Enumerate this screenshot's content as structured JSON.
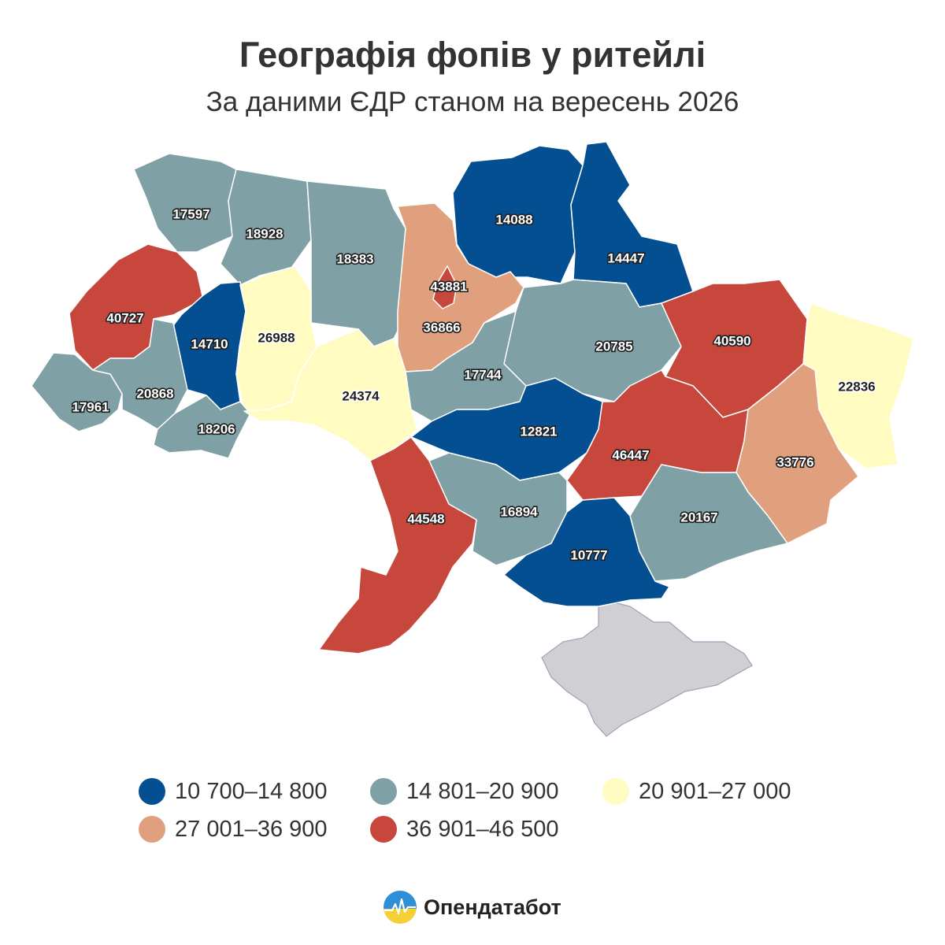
{
  "title": "Географія фопів у ритейлі",
  "subtitle": "За даними ЄДР станом на вересень 2026",
  "legend": [
    {
      "label": "10 700–14 800",
      "color": "#034f92"
    },
    {
      "label": "14 801–20 900",
      "color": "#7fa0a4"
    },
    {
      "label": "20 901–27 000",
      "color": "#fffbc1"
    },
    {
      "label": "27 001–36 900",
      "color": "#e1a07d"
    },
    {
      "label": "36 901–46 500",
      "color": "#c7473c"
    }
  ],
  "regions": [
    {
      "value": "17597",
      "color": "#7fa0a4"
    },
    {
      "value": "18928",
      "color": "#7fa0a4"
    },
    {
      "value": "18383",
      "color": "#7fa0a4"
    },
    {
      "value": "14088",
      "color": "#034f92"
    },
    {
      "value": "14447",
      "color": "#034f92"
    },
    {
      "value": "40727",
      "color": "#c7473c"
    },
    {
      "value": "14710",
      "color": "#034f92"
    },
    {
      "value": "26988",
      "color": "#fffbc1"
    },
    {
      "value": "36866",
      "color": "#e1a07d"
    },
    {
      "value": "43881",
      "color": "#c7473c"
    },
    {
      "value": "20785",
      "color": "#7fa0a4"
    },
    {
      "value": "40590",
      "color": "#c7473c"
    },
    {
      "value": "22836",
      "color": "#fffbc1"
    },
    {
      "value": "17961",
      "color": "#7fa0a4"
    },
    {
      "value": "20868",
      "color": "#7fa0a4"
    },
    {
      "value": "18206",
      "color": "#7fa0a4"
    },
    {
      "value": "24374",
      "color": "#fffbc1"
    },
    {
      "value": "17744",
      "color": "#7fa0a4"
    },
    {
      "value": "12821",
      "color": "#034f92"
    },
    {
      "value": "46447",
      "color": "#c7473c"
    },
    {
      "value": "33776",
      "color": "#e1a07d"
    },
    {
      "value": "44548",
      "color": "#c7473c"
    },
    {
      "value": "16894",
      "color": "#7fa0a4"
    },
    {
      "value": "20167",
      "color": "#7fa0a4"
    },
    {
      "value": "10777",
      "color": "#034f92"
    }
  ],
  "brand": {
    "name": "Опендатабот"
  }
}
